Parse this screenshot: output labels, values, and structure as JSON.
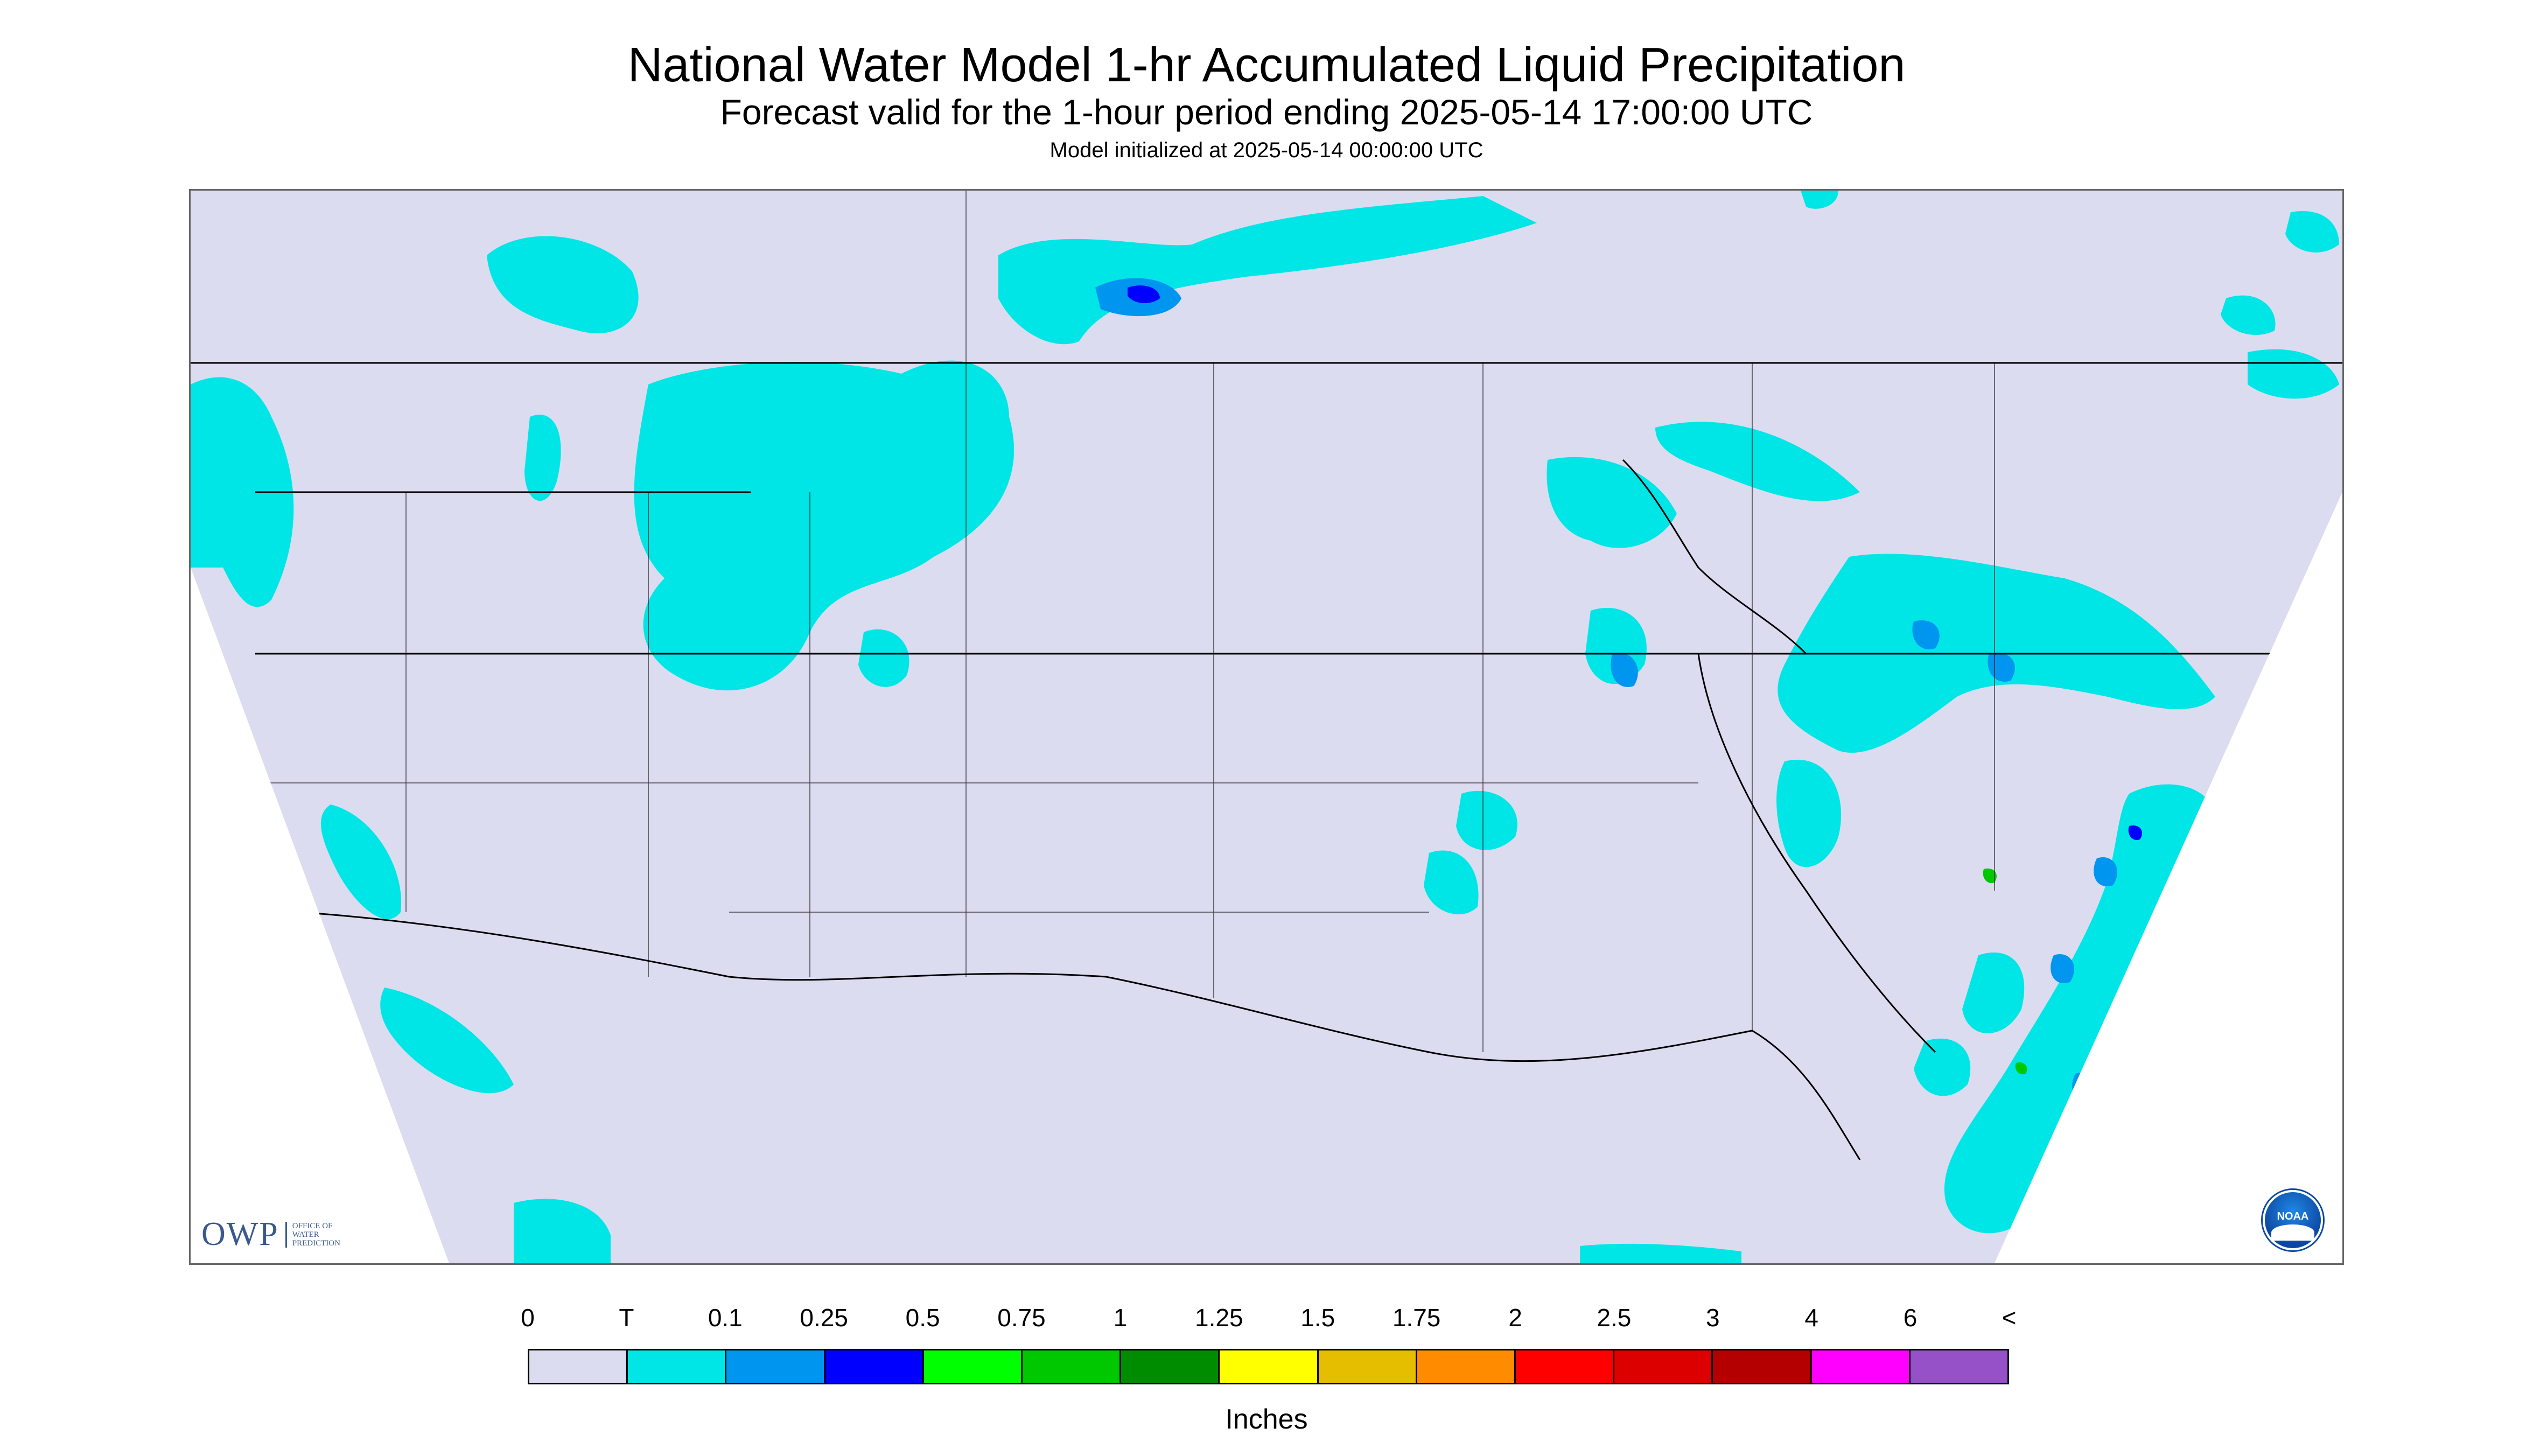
{
  "header": {
    "title": "National Water Model 1-hr Accumulated Liquid Precipitation",
    "subtitle": "Forecast valid for the 1-hour period ending 2025-05-14 17:00:00 UTC",
    "init": "Model initialized at 2025-05-14 00:00:00 UTC"
  },
  "logos": {
    "owp_mark": "OWP",
    "owp_text": [
      "OFFICE OF",
      "WATER",
      "PREDICTION"
    ],
    "noaa_text": "NOAA"
  },
  "legend": {
    "labels": [
      "0",
      "T",
      "0.1",
      "0.25",
      "0.5",
      "0.75",
      "1",
      "1.25",
      "1.5",
      "1.75",
      "2",
      "2.5",
      "3",
      "4",
      "6",
      "<"
    ],
    "colors": [
      "#dcdcf0",
      "#00e6e6",
      "#0096f0",
      "#0000ff",
      "#00ff00",
      "#00c800",
      "#008c00",
      "#ffff00",
      "#e6be00",
      "#ff8c00",
      "#ff0000",
      "#dc0000",
      "#b40000",
      "#ff00ff",
      "#9650c8"
    ],
    "units": "Inches"
  },
  "map": {
    "domain_fill": "#dcdcf0",
    "outside_fill": "#ffffff",
    "precip_light": "#00e6e6",
    "precip_moderate": "#0096f0",
    "precip_heavy": "#0000ff",
    "precip_extreme": "#00c800",
    "border_color": "#000000"
  }
}
